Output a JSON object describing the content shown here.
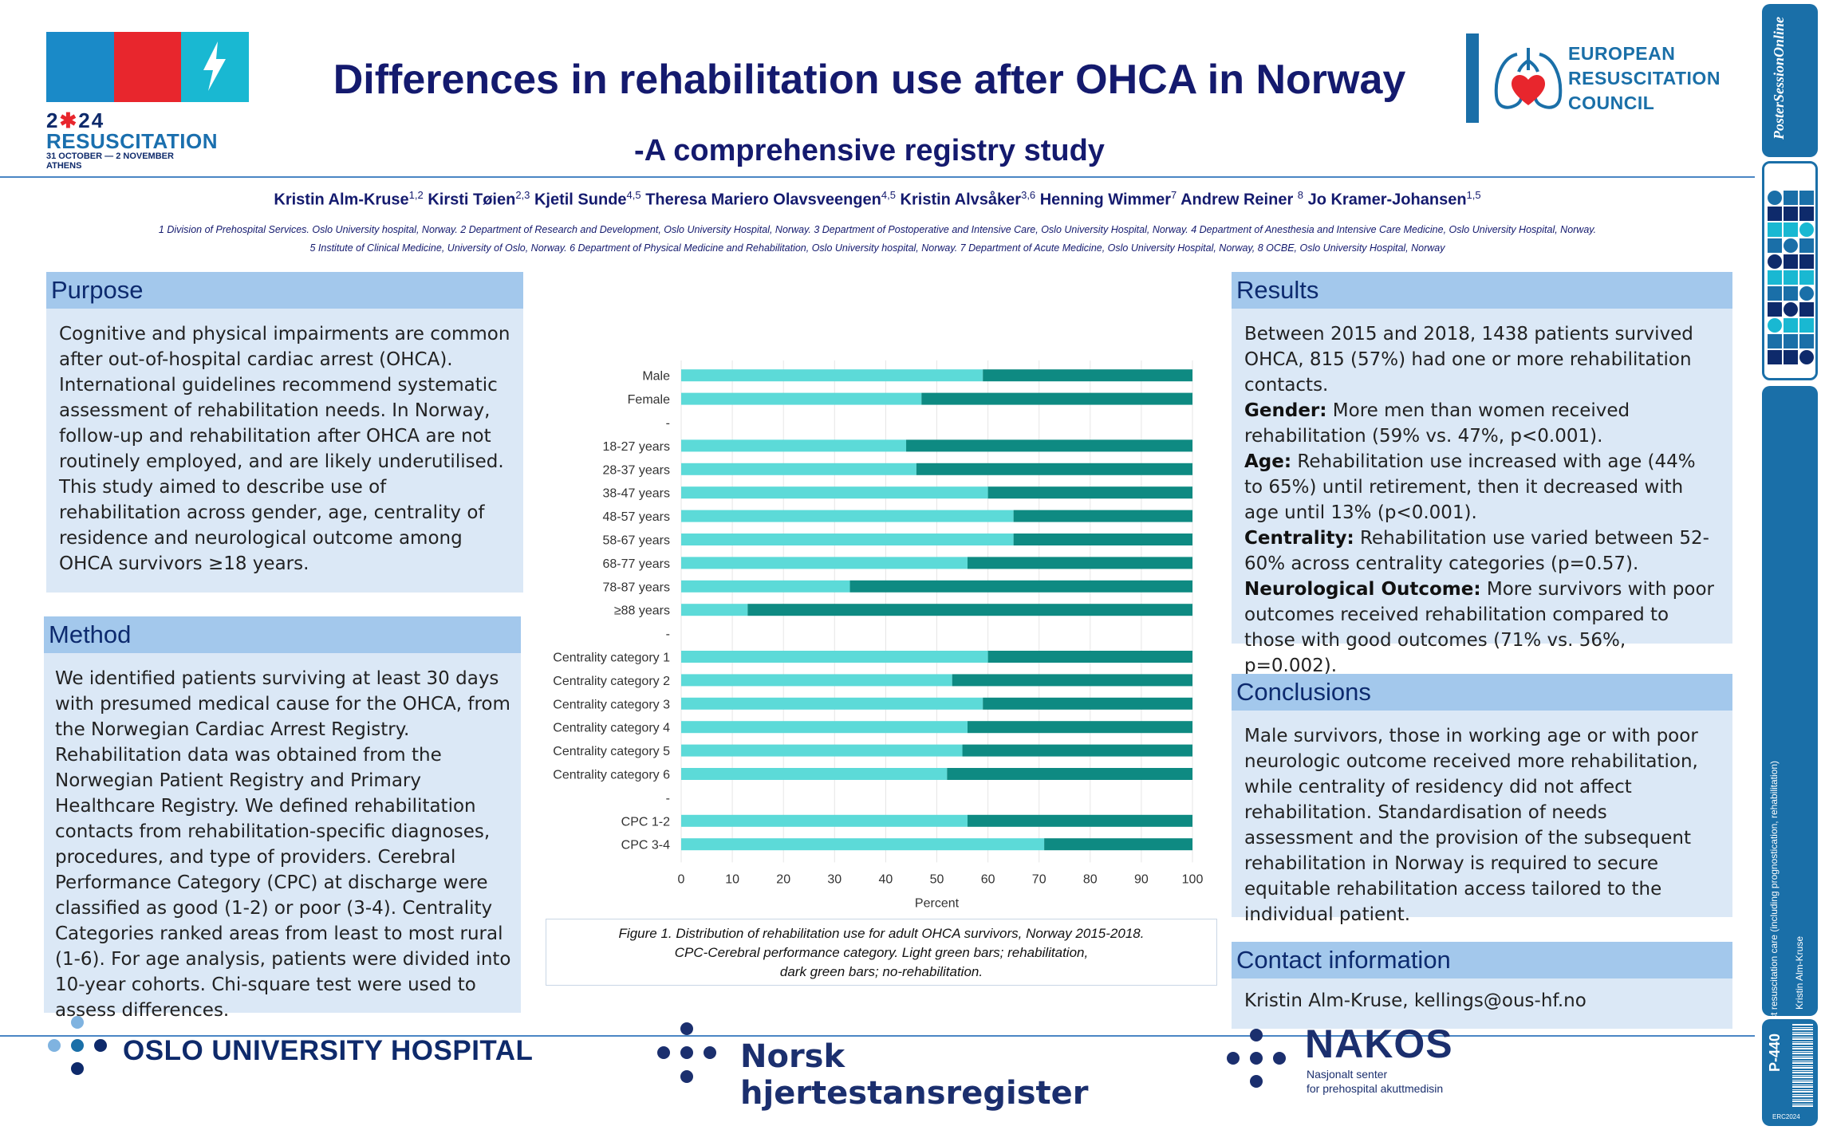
{
  "conference": {
    "year": "2024",
    "name": "RESUSCITATION",
    "dates": "31 OCTOBER — 2 NOVEMBER",
    "city": "ATHENS"
  },
  "title": "Differences in rehabilitation use after OHCA in Norway",
  "subtitle": "-A comprehensive registry study",
  "erc": {
    "line1": "EUROPEAN",
    "line2": "RESUSCITATION",
    "line3": "COUNCIL"
  },
  "authors": [
    {
      "name": "Kristin Alm-Kruse",
      "sup": "1,2"
    },
    {
      "name": "Kirsti Tøien",
      "sup": "2,3"
    },
    {
      "name": "Kjetil Sunde",
      "sup": "4,5"
    },
    {
      "name": "Theresa Mariero Olavsveengen",
      "sup": "4,5"
    },
    {
      "name": "Kristin Alvsåker",
      "sup": "3,6"
    },
    {
      "name": "Henning Wimmer",
      "sup": "7"
    },
    {
      "name": "Andrew Reiner ",
      "sup": "8"
    },
    {
      "name": "Jo Kramer-Johansen",
      "sup": "1,5"
    }
  ],
  "affiliations": {
    "line1": "1 Division of Prehospital Services. Oslo University hospital, Norway.  2 Department of Research and Development, Oslo University Hospital, Norway. 3 Department of Postoperative and Intensive Care, Oslo University Hospital, Norway. 4 Department of Anesthesia and Intensive Care Medicine, Oslo University Hospital, Norway.",
    "line2": "5 Institute of Clinical Medicine, University of Oslo, Norway.  6 Department of Physical Medicine and Rehabilitation, Oslo University hospital, Norway. 7 Department of Acute Medicine, Oslo University Hospital, Norway, 8 OCBE, Oslo University Hospital, Norway"
  },
  "purpose": {
    "heading": "Purpose",
    "text": "Cognitive and physical impairments are common after out-of-hospital cardiac arrest (OHCA). International guidelines recommend systematic assessment of rehabilitation needs. In Norway, follow-up and rehabilitation after OHCA are not routinely employed, and are likely underutilised. This study aimed to describe use of rehabilitation across gender, age, centrality of residence and neurological outcome among OHCA survivors ≥18 years."
  },
  "method": {
    "heading": "Method",
    "text": "We identified patients surviving at least 30 days with presumed medical cause for the OHCA, from the Norwegian Cardiac Arrest Registry. Rehabilitation data was obtained from the Norwegian Patient Registry and Primary Healthcare Registry. We defined rehabilitation contacts from rehabilitation-specific diagnoses, procedures, and type of providers. Cerebral Performance Category (CPC)  at discharge were classified as good (1-2) or poor (3-4). Centrality Categories ranked areas from least to most rural (1-6). For age analysis, patients were divided into 10-year cohorts. Chi-square test were used to assess differences."
  },
  "results": {
    "heading": "Results",
    "intro": "Between 2015 and 2018, 1438 patients survived OHCA, 815 (57%) had one or more rehabilitation contacts.",
    "items": [
      {
        "label": "Gender:",
        "text": " More men than women received rehabilitation (59% vs. 47%, p<0.001)."
      },
      {
        "label": "Age:",
        "text": " Rehabilitation use increased with age (44% to 65%)  until retirement, then it decreased with age until 13% (p<0.001)."
      },
      {
        "label": "Centrality:",
        "text": " Rehabilitation use varied between 52-60% across centrality categories (p=0.57)."
      },
      {
        "label": "Neurological Outcome:",
        "text": " More survivors with poor outcomes received rehabilitation compared to those with good outcomes (71% vs. 56%, p=0.002)."
      }
    ]
  },
  "conclusions": {
    "heading": "Conclusions",
    "text": "Male survivors, those in working age or with poor neurologic outcome received more rehabilitation, while centrality of residency did not affect rehabilitation. Standardisation of needs assessment and the provision of the subsequent rehabilitation in Norway is required to secure equitable rehabilitation access tailored to the individual patient."
  },
  "contact": {
    "heading": "Contact information",
    "text": "Kristin Alm-Kruse, kellings@ous-hf.no"
  },
  "caption": {
    "line1": "Figure 1. Distribution of rehabilitation use for adult OHCA survivors, Norway 2015-2018.",
    "line2": "CPC-Cerebral performance category.  Light green bars; rehabilitation,",
    "line3": "dark green bars; no-rehabilitation."
  },
  "chart_data": {
    "type": "bar",
    "orientation": "horizontal",
    "stacked": true,
    "categories": [
      "Male",
      "Female",
      "-",
      "18-27 years",
      "28-37 years",
      "38-47 years",
      "48-57 years",
      "58-67 years",
      "68-77 years",
      "78-87 years",
      "≥88 years",
      "-",
      "Centrality category 1",
      "Centrality category 2",
      "Centrality category 3",
      "Centrality category 4",
      "Centrality category 5",
      "Centrality category 6",
      "-",
      "CPC 1-2",
      "CPC 3-4"
    ],
    "series": [
      {
        "color": "#5cdad8",
        "values": [
          59,
          47,
          null,
          44,
          46,
          60,
          65,
          65,
          56,
          33,
          13,
          null,
          60,
          53,
          59,
          56,
          55,
          52,
          null,
          56,
          71
        ]
      },
      {
        "color": "#0e8a82",
        "values": [
          41,
          53,
          null,
          56,
          54,
          40,
          35,
          35,
          44,
          67,
          87,
          null,
          40,
          47,
          41,
          44,
          45,
          48,
          null,
          44,
          29
        ]
      }
    ],
    "xlabel": "Percent",
    "xlim": [
      0,
      100
    ],
    "xticks": [
      0,
      10,
      20,
      30,
      40,
      50,
      60,
      70,
      80,
      90,
      100
    ],
    "grid": true
  },
  "logos": {
    "ouh": "OSLO UNIVERSITY HOSPITAL",
    "nhr": "Norsk hjertestansregister",
    "nakos": "NAKOS",
    "nakos_sub1": "Nasjonalt senter",
    "nakos_sub2": "for prehospital akuttmedisin"
  },
  "side": {
    "poster_session": "PosterSessionOnline",
    "topic": "Post resuscitation care (including prognostication, rehabilitation)",
    "author": "Kristin Alm-Kruse",
    "poster_id": "P-440",
    "erc_code": "ERC2024"
  }
}
